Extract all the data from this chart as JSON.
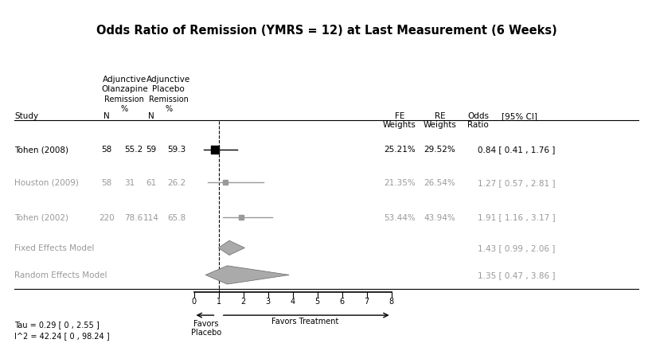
{
  "title": "Odds Ratio of Remission (YMRS = 12) at Last Measurement (6 Weeks)",
  "studies": [
    {
      "name": "Tohen (2008)",
      "n1": 58,
      "rem1": 55.2,
      "n2": 59,
      "rem2": 59.3,
      "fe_weight": "25.21%",
      "re_weight": "29.52%",
      "or": 0.84,
      "ci_low": 0.41,
      "ci_high": 1.76,
      "color": "#000000",
      "marker_size": 7
    },
    {
      "name": "Houston (2009)",
      "n1": 58,
      "rem1": 31,
      "n2": 61,
      "rem2": 26.2,
      "fe_weight": "21.35%",
      "re_weight": "26.54%",
      "or": 1.27,
      "ci_low": 0.57,
      "ci_high": 2.81,
      "color": "#999999",
      "marker_size": 5
    },
    {
      "name": "Tohen (2002)",
      "n1": 220,
      "rem1": 78.6,
      "n2": 114,
      "rem2": 65.8,
      "fe_weight": "53.44%",
      "re_weight": "43.94%",
      "or": 1.91,
      "ci_low": 1.16,
      "ci_high": 3.17,
      "color": "#999999",
      "marker_size": 5
    }
  ],
  "fixed_effects": {
    "or": 1.43,
    "ci_low": 0.99,
    "ci_high": 2.06,
    "label": "Fixed Effects Model"
  },
  "random_effects": {
    "or": 1.35,
    "ci_low": 0.47,
    "ci_high": 3.86,
    "label": "Random Effects Model"
  },
  "tau_text": "Tau = 0.29 [ 0 , 2.55 ]",
  "i2_text": "I^2 = 42.24 [ 0 , 98.24 ]",
  "xmin": 0,
  "xmax": 8,
  "xticks": [
    0,
    1,
    2,
    3,
    4,
    5,
    6,
    7,
    8
  ],
  "favors_left": "Favors\nPlacebo",
  "favors_right": "Favors Treatment",
  "bg_color": "#ffffff",
  "text_color_dark": "#000000",
  "text_color_light": "#999999",
  "diamond_color": "#aaaaaa"
}
